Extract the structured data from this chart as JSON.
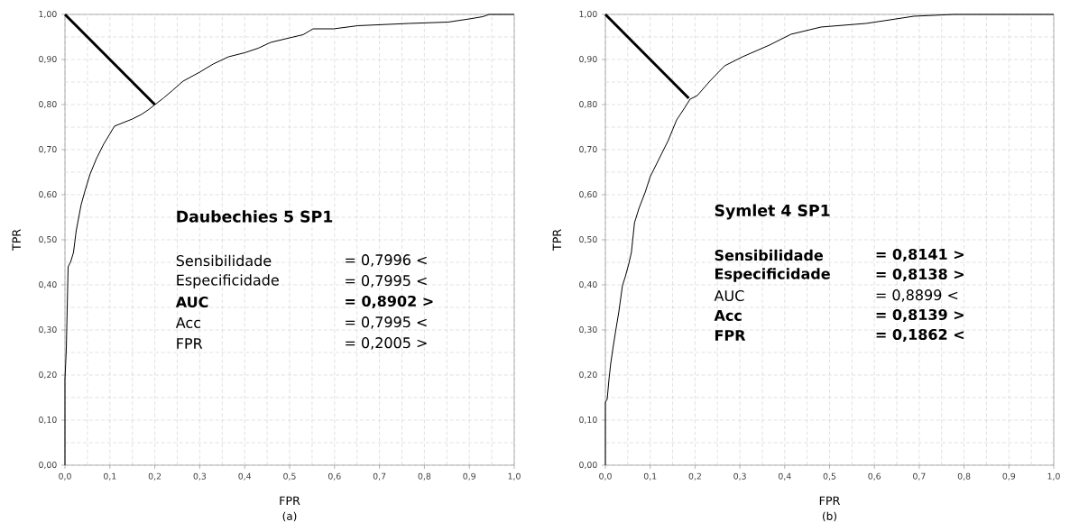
{
  "chart_data": [
    {
      "type": "line",
      "xlabel": "FPR",
      "ylabel": "TPR",
      "xlim": [
        0,
        1
      ],
      "ylim": [
        0,
        1
      ],
      "grid": true,
      "xticks": [
        {
          "value": 0,
          "label": "0,0"
        },
        {
          "value": 0.1,
          "label": "0,1"
        },
        {
          "value": 0.2,
          "label": "0,2"
        },
        {
          "value": 0.3,
          "label": "0,3"
        },
        {
          "value": 0.4,
          "label": "0,4"
        },
        {
          "value": 0.5,
          "label": "0,5"
        },
        {
          "value": 0.6,
          "label": "0,6"
        },
        {
          "value": 0.7,
          "label": "0,7"
        },
        {
          "value": 0.8,
          "label": "0,8"
        },
        {
          "value": 0.9,
          "label": "0,9"
        },
        {
          "value": 1,
          "label": "1,0"
        }
      ],
      "yticks": [
        {
          "value": 0,
          "label": "0,00"
        },
        {
          "value": 0.1,
          "label": "0,10"
        },
        {
          "value": 0.2,
          "label": "0,20"
        },
        {
          "value": 0.3,
          "label": "0,30"
        },
        {
          "value": 0.4,
          "label": "0,40"
        },
        {
          "value": 0.5,
          "label": "0,50"
        },
        {
          "value": 0.6,
          "label": "0,60"
        },
        {
          "value": 0.7,
          "label": "0,70"
        },
        {
          "value": 0.8,
          "label": "0,80"
        },
        {
          "value": 0.9,
          "label": "0,90"
        },
        {
          "value": 1,
          "label": "1,00"
        }
      ],
      "series": [
        {
          "color": "#000000",
          "x": [
            0,
            0,
            0.003,
            0.005,
            0.007,
            0.013,
            0.019,
            0.025,
            0.036,
            0.045,
            0.056,
            0.07,
            0.086,
            0.1,
            0.11,
            0.13,
            0.15,
            0.17,
            0.185,
            0.203,
            0.22,
            0.24,
            0.263,
            0.3,
            0.33,
            0.364,
            0.4,
            0.43,
            0.458,
            0.5,
            0.53,
            0.552,
            0.598,
            0.652,
            0.766,
            0.853,
            0.9,
            0.93,
            0.944,
            1
          ],
          "values": [
            0,
            0.19,
            0.258,
            0.35,
            0.44,
            0.452,
            0.472,
            0.52,
            0.578,
            0.61,
            0.646,
            0.68,
            0.712,
            0.735,
            0.752,
            0.76,
            0.768,
            0.778,
            0.788,
            0.802,
            0.815,
            0.832,
            0.852,
            0.872,
            0.89,
            0.906,
            0.915,
            0.925,
            0.938,
            0.948,
            0.955,
            0.968,
            0.968,
            0.975,
            0.98,
            0.983,
            0.99,
            0.995,
            1,
            1
          ]
        },
        {
          "color": "#000000",
          "x": [
            0,
            0.2
          ],
          "values": [
            1,
            0.8
          ]
        }
      ],
      "annotations": [
        "Daubechies 5 SP1",
        "Sensibilidade",
        "= 0,7996 <",
        "Especificidade",
        "= 0,7995 <",
        "**AUC**",
        "**= 0,8902 >**",
        "Acc",
        "= 0,7995 <",
        "FPR",
        "= 0,2005 >",
        "(a)"
      ]
    },
    {
      "type": "line",
      "xlabel": "FPR",
      "ylabel": "TPR",
      "xlim": [
        0,
        1
      ],
      "ylim": [
        0,
        1
      ],
      "grid": true,
      "xticks": [
        {
          "value": 0,
          "label": "0,0"
        },
        {
          "value": 0.1,
          "label": "0,1"
        },
        {
          "value": 0.2,
          "label": "0,2"
        },
        {
          "value": 0.3,
          "label": "0,3"
        },
        {
          "value": 0.4,
          "label": "0,4"
        },
        {
          "value": 0.5,
          "label": "0,5"
        },
        {
          "value": 0.6,
          "label": "0,6"
        },
        {
          "value": 0.7,
          "label": "0,7"
        },
        {
          "value": 0.8,
          "label": "0,8"
        },
        {
          "value": 0.9,
          "label": "0,9"
        },
        {
          "value": 1,
          "label": "1,0"
        }
      ],
      "yticks": [
        {
          "value": 0,
          "label": "0,00"
        },
        {
          "value": 0.1,
          "label": "0,10"
        },
        {
          "value": 0.2,
          "label": "0,20"
        },
        {
          "value": 0.3,
          "label": "0,30"
        },
        {
          "value": 0.4,
          "label": "0,40"
        },
        {
          "value": 0.5,
          "label": "0,50"
        },
        {
          "value": 0.6,
          "label": "0,60"
        },
        {
          "value": 0.7,
          "label": "0,70"
        },
        {
          "value": 0.8,
          "label": "0,80"
        },
        {
          "value": 0.9,
          "label": "0,90"
        },
        {
          "value": 1,
          "label": "1,00"
        }
      ],
      "series": [
        {
          "color": "#000000",
          "x": [
            0,
            0,
            0.004,
            0.008,
            0.012,
            0.017,
            0.022,
            0.03,
            0.038,
            0.045,
            0.052,
            0.058,
            0.065,
            0.075,
            0.089,
            0.1,
            0.119,
            0.14,
            0.159,
            0.175,
            0.189,
            0.205,
            0.233,
            0.266,
            0.306,
            0.366,
            0.414,
            0.481,
            0.581,
            0.622,
            0.688,
            0.777,
            1
          ],
          "values": [
            0,
            0.14,
            0.146,
            0.19,
            0.226,
            0.26,
            0.292,
            0.34,
            0.398,
            0.42,
            0.446,
            0.472,
            0.538,
            0.57,
            0.606,
            0.64,
            0.678,
            0.72,
            0.766,
            0.79,
            0.812,
            0.82,
            0.852,
            0.886,
            0.906,
            0.932,
            0.956,
            0.972,
            0.98,
            0.986,
            0.996,
            1,
            1
          ]
        },
        {
          "color": "#000000",
          "x": [
            0,
            0.186
          ],
          "values": [
            1,
            0.814
          ]
        }
      ],
      "annotations": [
        "Symlet 4 SP1",
        "**Sensibilidade**",
        "**= 0,8141 >**",
        "**Especificidade**",
        "**= 0,8138 >**",
        "AUC",
        "= 0,8899  <",
        "**Acc**",
        "**= 0,8139 >**",
        "**FPR**",
        "**= 0,1862 <**",
        "(b)"
      ]
    }
  ]
}
